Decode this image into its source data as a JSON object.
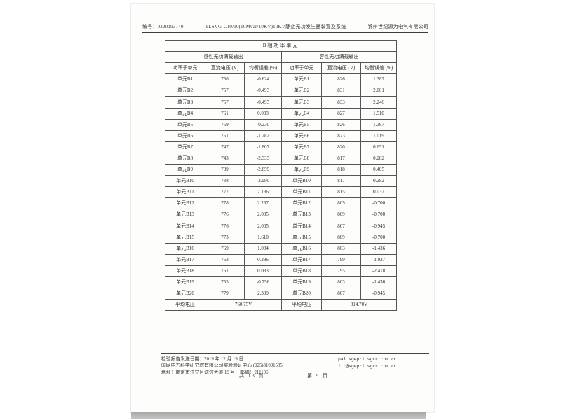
{
  "header": {
    "report_no": "编号：0220193140",
    "title": "TLSVG-C10/10(10Mvar/10KV)10KV静止无功发生器装置及系统",
    "company": "锦州世纪源为电气有限公司"
  },
  "table": {
    "title": "B相功率单元",
    "group_headers": [
      "感性无功满载输出",
      "容性无功满载输出"
    ],
    "column_headers": [
      "功率子单元",
      "直流电压 (V)",
      "均衡误差 (%)",
      "功率子单元",
      "直流电压 (V)",
      "均衡误差 (%)"
    ],
    "rows": [
      [
        "单元B1",
        "756",
        "-0.624",
        "单元B1",
        "826",
        "1.387"
      ],
      [
        "单元B2",
        "757",
        "-0.493",
        "单元B2",
        "831",
        "2.001"
      ],
      [
        "单元B3",
        "757",
        "-0.493",
        "单元B3",
        "833",
        "2.246"
      ],
      [
        "单元B4",
        "761",
        "0.033",
        "单元B4",
        "827",
        "1.510"
      ],
      [
        "单元B5",
        "759",
        "-0.230",
        "单元B5",
        "826",
        "1.387"
      ],
      [
        "单元B6",
        "751",
        "-1.282",
        "单元B6",
        "823",
        "1.019"
      ],
      [
        "单元B7",
        "747",
        "-1.807",
        "单元B7",
        "820",
        "0.651"
      ],
      [
        "单元B8",
        "743",
        "-2.333",
        "单元B8",
        "817",
        "0.282"
      ],
      [
        "单元B9",
        "739",
        "-2.859",
        "单元B9",
        "818",
        "0.405"
      ],
      [
        "单元B10",
        "738",
        "-2.990",
        "单元B10",
        "817",
        "0.282"
      ],
      [
        "单元B11",
        "777",
        "2.136",
        "单元B11",
        "815",
        "0.037"
      ],
      [
        "单元B12",
        "778",
        "2.267",
        "单元B12",
        "809",
        "-0.700"
      ],
      [
        "单元B13",
        "776",
        "2.005",
        "单元B13",
        "809",
        "-0.700"
      ],
      [
        "单元B14",
        "776",
        "2.005",
        "单元B14",
        "807",
        "-0.945"
      ],
      [
        "单元B15",
        "773",
        "1.610",
        "单元B15",
        "809",
        "-0.700"
      ],
      [
        "单元B16",
        "769",
        "1.084",
        "单元B16",
        "803",
        "-1.436"
      ],
      [
        "单元B17",
        "763",
        "0.296",
        "单元B17",
        "799",
        "-1.927"
      ],
      [
        "单元B18",
        "761",
        "0.033",
        "单元B18",
        "795",
        "-2.418"
      ],
      [
        "单元B19",
        "755",
        "-0.756",
        "单元B19",
        "803",
        "-1.436"
      ],
      [
        "单元B20",
        "779",
        "2.399",
        "单元B20",
        "807",
        "-0.945"
      ]
    ],
    "avg": [
      {
        "label": "平均电压",
        "value": "760.75V"
      },
      {
        "label": "平均电压",
        "value": "814.70V"
      }
    ]
  },
  "footer": {
    "date_line": "检验报告发送日期：2019 年 12 月 19 日",
    "org_line": "国网电力科学研究院有限公司实验验证中心 (025)81091585",
    "addr_line": "地址：南京市江宁区诚信大道 19 号　邮编：211106",
    "email1": "pal.sgepri.sgcc.com.cn",
    "email2": "itc@sgepri.sgcc.com.cn",
    "pages_total": "共  13  页",
    "page_current": "第  9  页"
  }
}
